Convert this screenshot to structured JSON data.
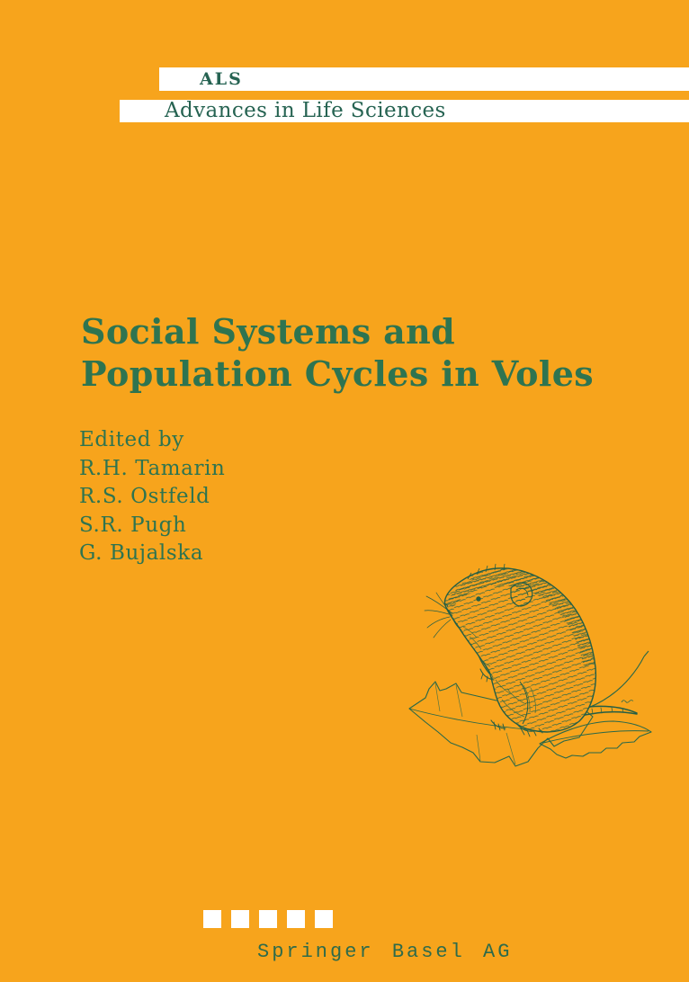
{
  "cover": {
    "series": {
      "abbreviation": "ALS",
      "name": "Advances in Life Sciences"
    },
    "title": {
      "line1": "Social Systems and",
      "line2": "Population Cycles in Voles"
    },
    "editors": {
      "heading": "Edited by",
      "names": [
        "R.H. Tamarin",
        "R.S. Ostfeld",
        "S.R. Pugh",
        "G. Bujalska"
      ]
    },
    "publisher": {
      "name": "Springer Basel AG",
      "logo_square_count": 5
    },
    "illustration": {
      "name": "vole-on-maple-leaf-line-drawing"
    },
    "colors": {
      "background": "#F7A41C",
      "bar": "#FFFFFF",
      "series_green": "#266352",
      "title_green": "#2E7450",
      "art_green": "#245E45",
      "publisher_green": "#2F6B4A"
    }
  }
}
